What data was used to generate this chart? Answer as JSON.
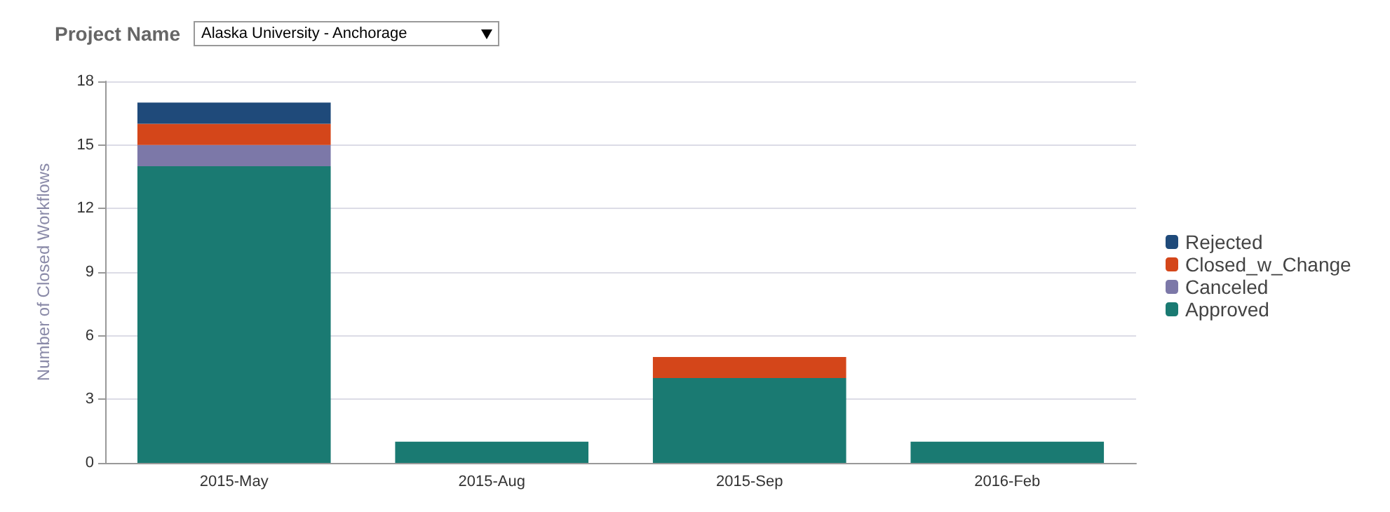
{
  "chart_data": {
    "type": "bar",
    "stacked": true,
    "annotations": [
      "Project Name",
      "Alaska University - Anchorage"
    ],
    "ylabel": "Number of Closed Workflows",
    "categories": [
      "2015-May",
      "2015-Aug",
      "2015-Sep",
      "2016-Feb"
    ],
    "series": [
      {
        "name": "Approved",
        "color": "#1a7a72",
        "values": [
          14,
          1,
          4,
          1
        ]
      },
      {
        "name": "Canceled",
        "color": "#7c78a8",
        "values": [
          1,
          0,
          0,
          0
        ]
      },
      {
        "name": "Closed_w_Change",
        "color": "#d4461a",
        "values": [
          1,
          0,
          1,
          0
        ]
      },
      {
        "name": "Rejected",
        "color": "#1f4a7a",
        "values": [
          1,
          0,
          0,
          0
        ]
      }
    ],
    "ylim": [
      0,
      18
    ],
    "yticks": [
      0,
      3,
      6,
      9,
      12,
      15,
      18
    ],
    "grid": "y",
    "legend": "right"
  }
}
